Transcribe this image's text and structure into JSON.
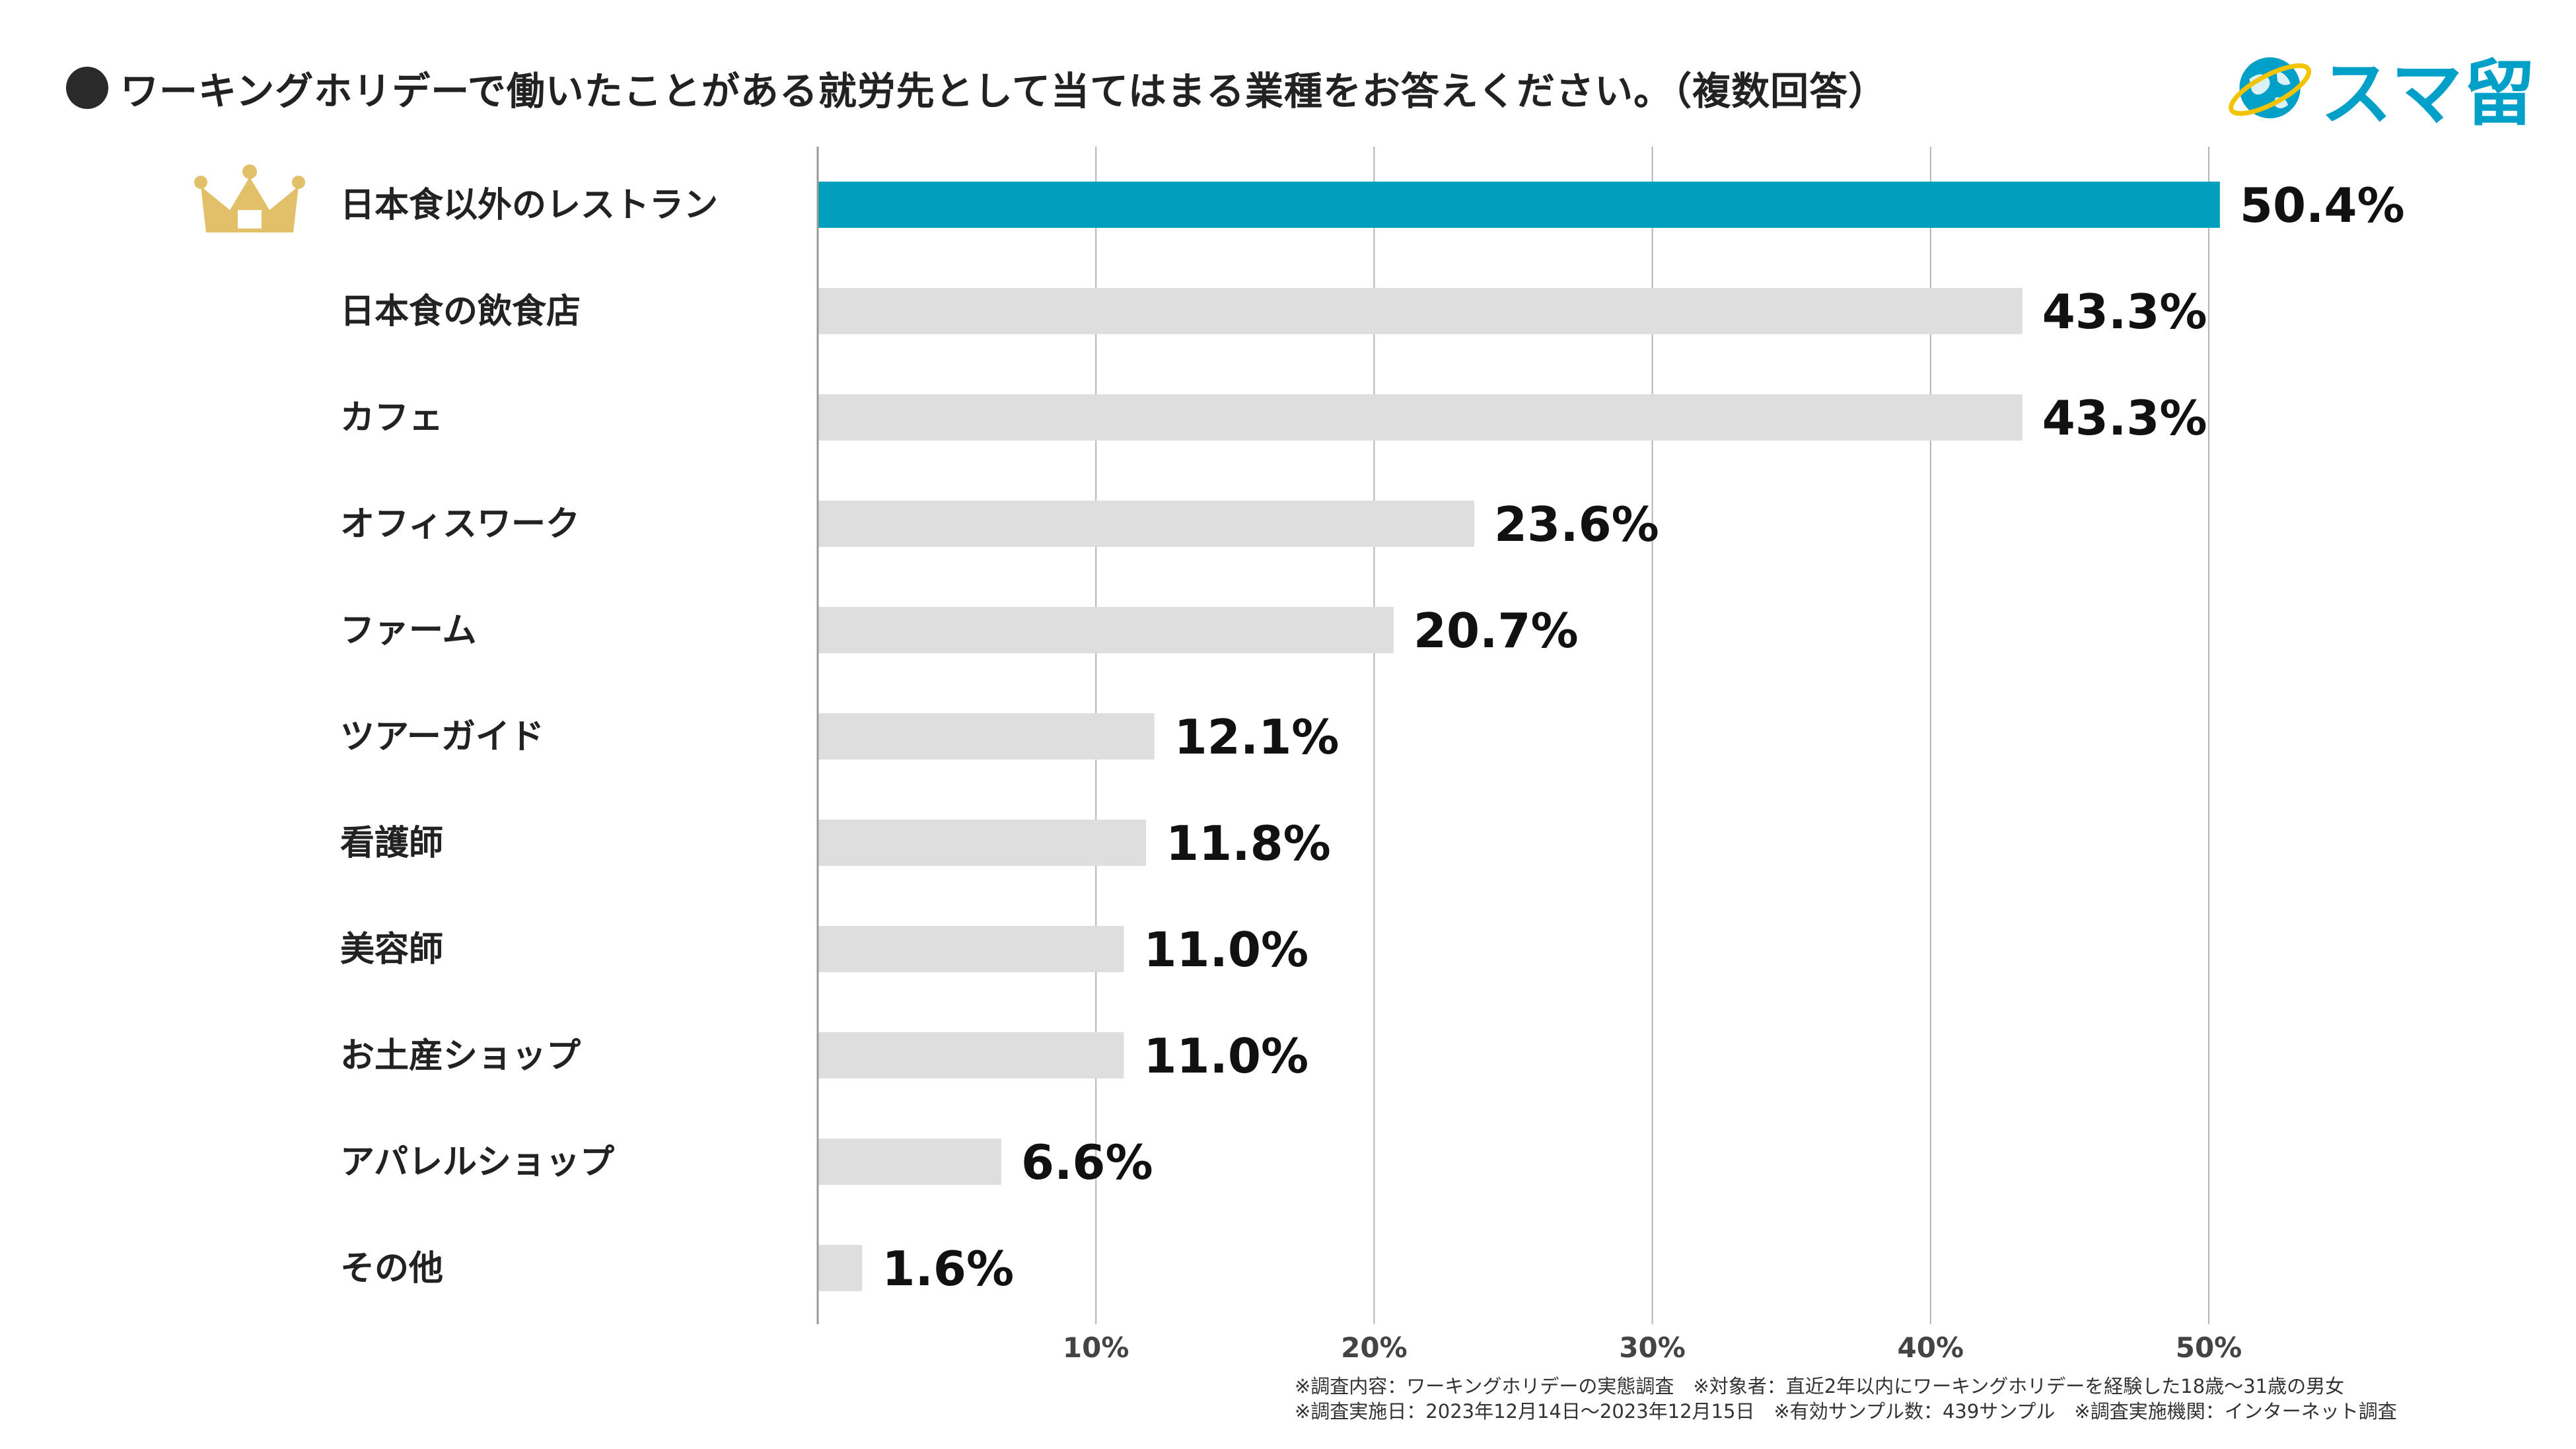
{
  "header": {
    "title": "ワーキングホリデーで働いたことがある就労先として当てはまる業種をお答えください。（複数回答）"
  },
  "logo": {
    "text": "スマ留",
    "icon": "globe-icon",
    "brand_color": "#00a0c8"
  },
  "top_badge_icon": "crown-icon",
  "colors": {
    "highlight_bar": "#009fbe",
    "other_bars": "#dedede",
    "gridline": "#b4b4b4",
    "crown": "#e2c06a"
  },
  "chart_data": {
    "type": "bar",
    "orientation": "horizontal",
    "title": "ワーキングホリデーで働いたことがある就労先として当てはまる業種をお答えください。（複数回答）",
    "xlabel": "",
    "ylabel": "",
    "xlim": [
      0,
      50
    ],
    "grid": true,
    "highlight_index": 0,
    "categories": [
      "日本食以外のレストラン",
      "日本食の飲食店",
      "カフェ",
      "オフィスワーク",
      "ファーム",
      "ツアーガイド",
      "看護師",
      "美容師",
      "お土産ショップ",
      "アパレルショップ",
      "その他"
    ],
    "values": [
      50.4,
      43.3,
      43.3,
      23.6,
      20.7,
      12.1,
      11.8,
      11.0,
      11.0,
      6.6,
      1.6
    ],
    "value_labels": [
      "50.4%",
      "43.3%",
      "43.3%",
      "23.6%",
      "20.7%",
      "12.1%",
      "11.8%",
      "11.0%",
      "11.0%",
      "6.6%",
      "1.6%"
    ],
    "ticks": [
      10,
      20,
      30,
      40,
      50
    ],
    "tick_labels": [
      "10%",
      "20%",
      "30%",
      "40%",
      "50%"
    ]
  },
  "footnotes": {
    "line1": "※調査内容：ワーキングホリデーの実態調査　※対象者：直近2年以内にワーキングホリデーを経験した18歳～31歳の男女",
    "line2": "※調査実施日：2023年12月14日～2023年12月15日　※有効サンプル数：439サンプル　※調査実施機関：インターネット調査"
  }
}
